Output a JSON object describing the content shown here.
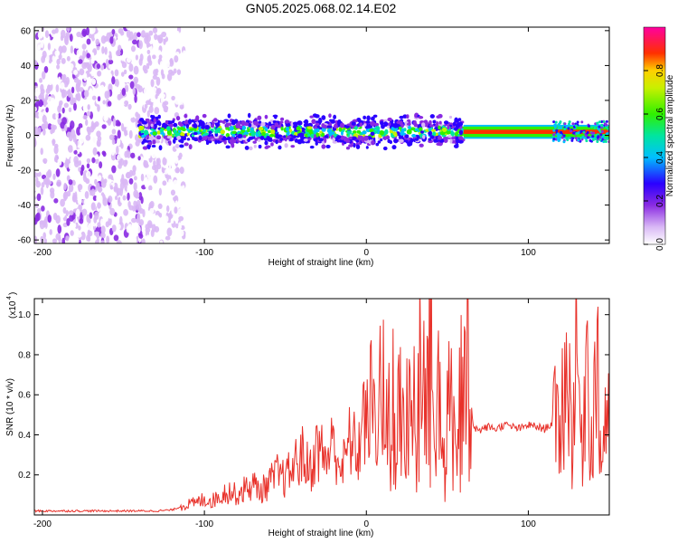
{
  "page_title": "GN05.2025.068.02.14.E02",
  "chart_data": [
    {
      "type": "heatmap",
      "title": "GN05.2025.068.02.14.E02",
      "xlabel": "Height of straight line (km)",
      "ylabel": "Frequency (Hz)",
      "xlim": [
        -205,
        150
      ],
      "ylim": [
        -62,
        62
      ],
      "xticks": [
        -200,
        -100,
        0,
        100
      ],
      "xtick_labels": [
        "-200",
        "-100",
        "0",
        "100"
      ],
      "yticks": [
        60,
        40,
        20,
        0,
        -20,
        -40,
        -60
      ],
      "ytick_labels": [
        "60",
        "40",
        "20",
        "0",
        "-20",
        "-40",
        "-60"
      ],
      "colorbar": {
        "label": "Normalized spectral amplitude",
        "range": [
          0,
          1
        ],
        "ticks": [
          0.0,
          0.2,
          0.4,
          0.6,
          0.8
        ],
        "tick_labels": [
          "0.0",
          "0.2",
          "0.4",
          "0.6",
          "0.8"
        ],
        "colormap": "rainbow (white-purple-blue-cyan-green-yellow-red-magenta)"
      },
      "regions": [
        {
          "x_range": [
            -205,
            -118
          ],
          "freq_range": [
            -62,
            62
          ],
          "amplitude": 0.1,
          "description_color": "#8a2be2"
        },
        {
          "x_range": [
            -140,
            60
          ],
          "freq_range": [
            -5,
            8
          ],
          "amplitude": 0.5
        },
        {
          "x_range": [
            60,
            150
          ],
          "freq_range": [
            -1,
            5
          ],
          "amplitude": 0.9
        },
        {
          "x_range": [
            115,
            150
          ],
          "freq_range": [
            -5,
            8
          ],
          "amplitude": 0.4
        }
      ],
      "band_center_hz": 2
    },
    {
      "type": "line",
      "xlabel": "Height of straight line (km)",
      "ylabel": "SNR (10 * v/v)",
      "y_multiplier_label": "(x10",
      "y_multiplier_exp": "4",
      "xlim": [
        -205,
        150
      ],
      "ylim": [
        0,
        1.08
      ],
      "xticks": [
        -200,
        -100,
        0,
        100
      ],
      "xtick_labels": [
        "-200",
        "-100",
        "0",
        "100"
      ],
      "yticks": [
        0.2,
        0.4,
        0.6,
        0.8,
        1.0
      ],
      "ytick_labels": [
        "0.2",
        "0.4",
        "0.6",
        "0.8",
        "1.0"
      ],
      "series": [
        {
          "color": "#e8312a",
          "x": [
            -205,
            -190,
            -175,
            -160,
            -145,
            -130,
            -120,
            -112,
            -105,
            -100,
            -95,
            -90,
            -85,
            -80,
            -75,
            -70,
            -65,
            -60,
            -55,
            -50,
            -45,
            -40,
            -35,
            -30,
            -25,
            -20,
            -15,
            -10,
            -5,
            -2,
            0,
            3,
            6,
            9,
            12,
            15,
            18,
            21,
            24,
            27,
            30,
            33,
            36,
            39,
            42,
            45,
            48,
            51,
            54,
            57,
            60,
            63,
            66,
            69,
            72,
            75,
            80,
            85,
            90,
            95,
            100,
            105,
            110,
            115,
            118,
            121,
            124,
            127,
            130,
            133,
            136,
            139,
            142,
            145,
            148,
            150
          ],
          "y": [
            0.02,
            0.02,
            0.02,
            0.02,
            0.02,
            0.02,
            0.025,
            0.05,
            0.06,
            0.08,
            0.07,
            0.1,
            0.12,
            0.1,
            0.13,
            0.15,
            0.12,
            0.16,
            0.2,
            0.18,
            0.24,
            0.3,
            0.22,
            0.34,
            0.28,
            0.36,
            0.22,
            0.38,
            0.3,
            0.52,
            0.42,
            0.6,
            0.4,
            0.72,
            0.55,
            0.8,
            0.48,
            0.78,
            0.62,
            0.95,
            0.5,
            0.82,
            0.6,
            1.06,
            0.55,
            0.88,
            0.6,
            0.92,
            0.55,
            0.82,
            0.6,
            0.72,
            0.45,
            0.42,
            0.43,
            0.44,
            0.43,
            0.45,
            0.44,
            0.43,
            0.45,
            0.44,
            0.43,
            0.46,
            0.42,
            0.55,
            0.75,
            0.4,
            0.85,
            0.3,
            0.9,
            0.35,
            0.8,
            0.25,
            0.55,
            0.4
          ]
        }
      ]
    }
  ]
}
